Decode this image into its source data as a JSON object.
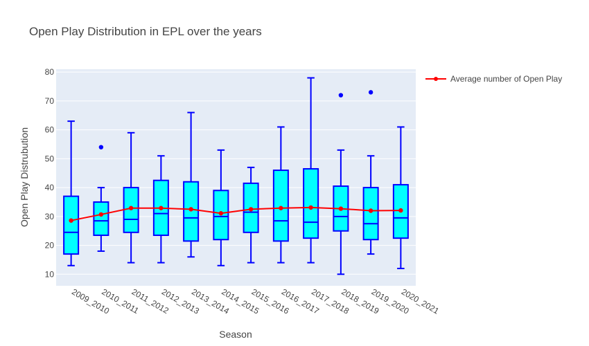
{
  "chart_data": {
    "type": "box",
    "title": "Open Play Distribution in EPL over the years",
    "xlabel": "Season",
    "ylabel": "Open Play Distrubution",
    "ylim": [
      6,
      81
    ],
    "yticks": [
      10,
      20,
      30,
      40,
      50,
      60,
      70,
      80
    ],
    "categories": [
      "2009_2010",
      "2010_2011",
      "2011_2012",
      "2012_2013",
      "2013_2014",
      "2014_2015",
      "2015_2016",
      "2016_2017",
      "2017_2018",
      "2018_2019",
      "2019_2020",
      "2020_2021"
    ],
    "boxes": [
      {
        "min": 13,
        "q1": 17,
        "median": 24.5,
        "q3": 37,
        "max": 63,
        "outliers": []
      },
      {
        "min": 18,
        "q1": 23.5,
        "median": 28.5,
        "q3": 35,
        "max": 40,
        "outliers": [
          54
        ]
      },
      {
        "min": 14,
        "q1": 24.5,
        "median": 29,
        "q3": 40,
        "max": 59,
        "outliers": []
      },
      {
        "min": 14,
        "q1": 23.5,
        "median": 31,
        "q3": 42.5,
        "max": 51,
        "outliers": []
      },
      {
        "min": 16,
        "q1": 21.5,
        "median": 29.5,
        "q3": 42,
        "max": 66,
        "outliers": []
      },
      {
        "min": 13,
        "q1": 22,
        "median": 30,
        "q3": 39,
        "max": 53,
        "outliers": []
      },
      {
        "min": 14,
        "q1": 24.5,
        "median": 31.5,
        "q3": 41.5,
        "max": 47,
        "outliers": []
      },
      {
        "min": 14,
        "q1": 21.5,
        "median": 28.5,
        "q3": 46,
        "max": 61,
        "outliers": []
      },
      {
        "min": 14,
        "q1": 22.5,
        "median": 28,
        "q3": 46.5,
        "max": 78,
        "outliers": []
      },
      {
        "min": 10,
        "q1": 25,
        "median": 30,
        "q3": 40.5,
        "max": 53,
        "outliers": [
          72
        ]
      },
      {
        "min": 17,
        "q1": 22,
        "median": 27.5,
        "q3": 40,
        "max": 51,
        "outliers": [
          73
        ]
      },
      {
        "min": 12,
        "q1": 22.5,
        "median": 29.5,
        "q3": 41,
        "max": 61,
        "outliers": []
      }
    ],
    "series": [
      {
        "name": "Average number of Open Play",
        "type": "line",
        "values": [
          28.6,
          30.7,
          32.9,
          32.9,
          32.5,
          31.1,
          32.5,
          32.9,
          33.1,
          32.7,
          32.0,
          32.1
        ]
      }
    ],
    "legend_position": "top-right",
    "grid": true,
    "colors": {
      "plot_bg": "#e5ecf6",
      "box_fill": "#00ffff",
      "box_line": "#0000ff",
      "outlier": "#0000ff",
      "mean_line": "#ff0000",
      "grid": "#ffffff"
    }
  }
}
